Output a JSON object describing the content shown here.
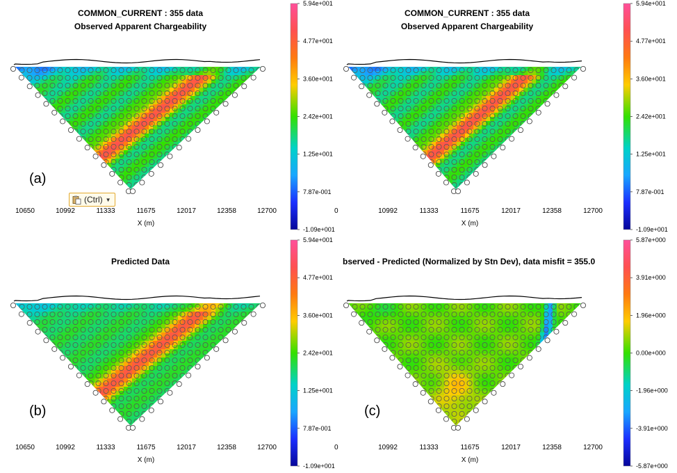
{
  "ctrl_tag": {
    "label": "(Ctrl)",
    "icon": "paste-options-icon"
  },
  "chart_data": [
    {
      "type": "heatmap",
      "panel_label": "(a)",
      "title": "COMMON_CURRENT : 355 data",
      "subtitle": "Observed Apparent Chargeability",
      "xlabel": "X (m)",
      "x_ticks": [
        10650,
        10992,
        11333,
        11675,
        12017,
        12358,
        12700
      ],
      "xlim": [
        10650,
        12700
      ],
      "colorbar": {
        "ticks": [
          "5.94e+001",
          "4.77e+001",
          "3.60e+001",
          "2.42e+001",
          "1.25e+001",
          "7.87e-001",
          "-1.09e+001"
        ],
        "range": [
          -10.9,
          59.4
        ]
      },
      "pattern": "observed"
    },
    {
      "type": "heatmap",
      "panel_label": "",
      "title": "COMMON_CURRENT : 355 data",
      "subtitle": "Observed Apparent Chargeability",
      "xlabel": "X (m)",
      "x_ticks": [
        "",
        10992,
        11333,
        11675,
        12017,
        12358,
        12700
      ],
      "xlim": [
        10650,
        12700
      ],
      "colorbar": {
        "ticks": [
          "5.94e+001",
          "4.77e+001",
          "3.60e+001",
          "2.42e+001",
          "1.25e+001",
          "7.87e-001",
          "-1.09e+001"
        ],
        "range": [
          -10.9,
          59.4
        ]
      },
      "pattern": "observed"
    },
    {
      "type": "heatmap",
      "panel_label": "(b)",
      "title": "Predicted Data",
      "subtitle": "",
      "xlabel": "X (m)",
      "x_ticks": [
        10650,
        10992,
        11333,
        11675,
        12017,
        12358,
        12700
      ],
      "xlim": [
        10650,
        12700
      ],
      "colorbar": {
        "ticks": [
          "5.94e+001",
          "4.77e+001",
          "3.60e+001",
          "2.42e+001",
          "1.25e+001",
          "7.87e-001",
          "-1.09e+001"
        ],
        "range": [
          -10.9,
          59.4
        ]
      },
      "pattern": "predicted"
    },
    {
      "type": "heatmap",
      "panel_label": "(c)",
      "title": "bserved - Predicted (Normalized by Stn Dev), data misfit = 355.0",
      "subtitle": "",
      "xlabel": "X (m)",
      "x_ticks": [
        "",
        10992,
        11333,
        11675,
        12017,
        12358,
        12700
      ],
      "xlim": [
        10650,
        12700
      ],
      "colorbar": {
        "ticks": [
          "5.87e+000",
          "3.91e+000",
          "1.96e+000",
          "0.00e+000",
          "-1.96e+000",
          "-3.91e+000",
          "-5.87e+000"
        ],
        "range": [
          -5.87,
          5.87
        ]
      },
      "pattern": "residual"
    }
  ]
}
